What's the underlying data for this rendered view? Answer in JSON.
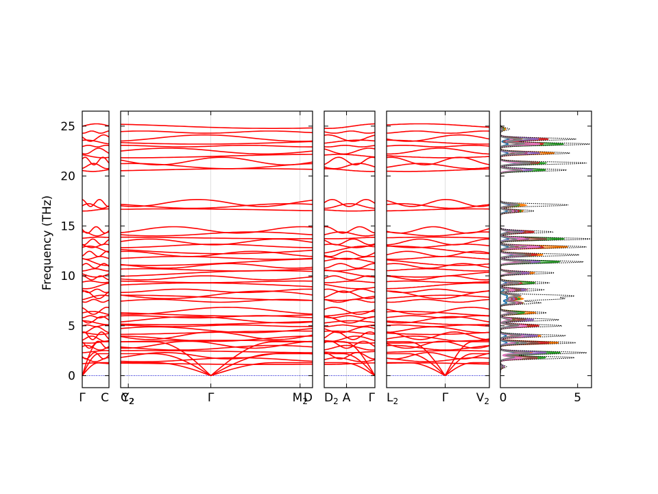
{
  "chart_data": {
    "type": "line",
    "ylabel": "Frequency (THz)",
    "ylim": [
      -1.2,
      26.5
    ],
    "yticks": [
      0,
      5,
      10,
      15,
      20,
      25
    ],
    "colors": {
      "band": "#ff0000",
      "zero_line": "#0000cc",
      "dos_total": "#000000",
      "dos_partial": [
        "#1f77b4",
        "#ff7f0e",
        "#2ca02c",
        "#d62728",
        "#9467bd",
        "#8c564b",
        "#e377c2",
        "#7f7f7f"
      ]
    },
    "band_panels": [
      {
        "name": "panel-gamma-c",
        "labels": [
          {
            "text": "Γ",
            "sub": "",
            "pos": 0
          },
          {
            "text": "C",
            "sub": "",
            "pos": 1
          }
        ]
      },
      {
        "name": "panel-c2-m2",
        "labels": [
          {
            "text": "C",
            "sub": "2",
            "pos": 0
          },
          {
            "text": "Y",
            "sub": "2",
            "pos": 0.04
          },
          {
            "text": "Γ",
            "sub": "",
            "pos": 0.47
          },
          {
            "text": "M",
            "sub": "2",
            "pos": 0.935
          },
          {
            "text": "D",
            "sub": "",
            "pos": 1
          }
        ]
      },
      {
        "name": "panel-d2-gamma",
        "labels": [
          {
            "text": "D",
            "sub": "2",
            "pos": 0
          },
          {
            "text": "A",
            "sub": "",
            "pos": 0.44
          },
          {
            "text": "Γ",
            "sub": "",
            "pos": 1
          }
        ]
      },
      {
        "name": "panel-l2-v2",
        "labels": [
          {
            "text": "L",
            "sub": "2",
            "pos": 0
          },
          {
            "text": "Γ",
            "sub": "",
            "pos": 0.57
          },
          {
            "text": "V",
            "sub": "2",
            "pos": 1
          }
        ]
      }
    ],
    "dos_panel": {
      "xlim": [
        0,
        5.9
      ],
      "xticks": [
        0,
        5
      ]
    },
    "band_levels": [
      1.2,
      1.6,
      2.0,
      2.4,
      2.8,
      3.1,
      3.4,
      3.7,
      4.0,
      4.3,
      4.6,
      5.0,
      5.3,
      5.6,
      5.9,
      6.2,
      6.5,
      7.5,
      7.8,
      8.1,
      8.5,
      9.0,
      9.4,
      9.8,
      10.2,
      10.6,
      11.0,
      11.4,
      11.8,
      12.2,
      12.6,
      13.0,
      13.4,
      13.8,
      14.2,
      14.6,
      16.6,
      17.0,
      17.3,
      20.6,
      21.0,
      21.5,
      22.0,
      22.5,
      23.0,
      23.4,
      23.8,
      24.4,
      25.0
    ],
    "dos_peaks": [
      {
        "f": 0.9,
        "total": 0.4
      },
      {
        "f": 1.8,
        "total": 4.8
      },
      {
        "f": 2.3,
        "total": 5.6
      },
      {
        "f": 3.3,
        "total": 4.9
      },
      {
        "f": 4.0,
        "total": 4.2
      },
      {
        "f": 5.0,
        "total": 4.0
      },
      {
        "f": 5.6,
        "total": 3.8
      },
      {
        "f": 6.3,
        "total": 3.0
      },
      {
        "f": 7.3,
        "total": 2.6
      },
      {
        "f": 7.7,
        "total": 3.9
      },
      {
        "f": 8.0,
        "total": 4.6
      },
      {
        "f": 8.6,
        "total": 2.8
      },
      {
        "f": 9.3,
        "total": 3.2
      },
      {
        "f": 10.3,
        "total": 3.5
      },
      {
        "f": 11.4,
        "total": 5.4
      },
      {
        "f": 12.1,
        "total": 5.1
      },
      {
        "f": 12.9,
        "total": 5.6
      },
      {
        "f": 13.7,
        "total": 5.9
      },
      {
        "f": 14.4,
        "total": 3.4
      },
      {
        "f": 16.5,
        "total": 2.2
      },
      {
        "f": 17.1,
        "total": 4.4
      },
      {
        "f": 20.6,
        "total": 4.3
      },
      {
        "f": 21.3,
        "total": 5.6
      },
      {
        "f": 22.3,
        "total": 4.5
      },
      {
        "f": 23.2,
        "total": 5.8
      },
      {
        "f": 23.7,
        "total": 4.9
      },
      {
        "f": 24.7,
        "total": 0.6
      }
    ]
  }
}
